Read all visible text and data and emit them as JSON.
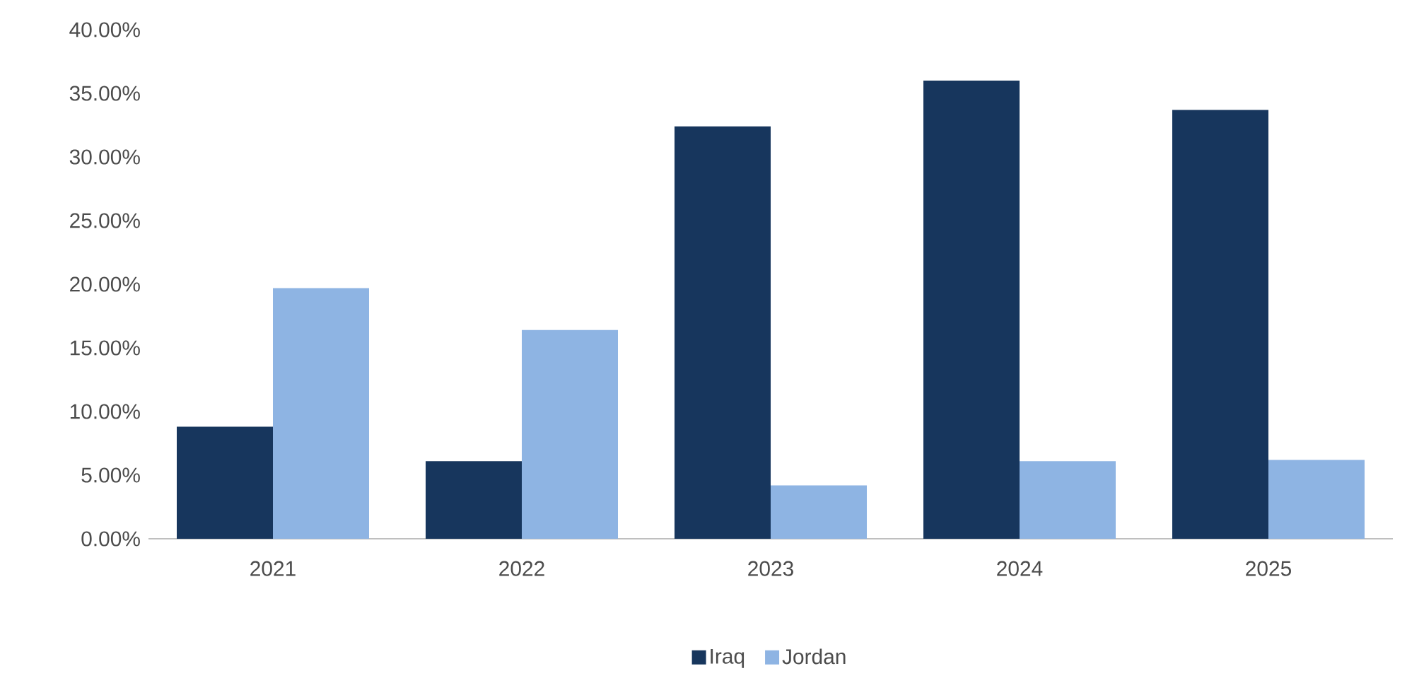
{
  "chart_data": {
    "type": "bar",
    "categories": [
      "2021",
      "2022",
      "2023",
      "2024",
      "2025"
    ],
    "series": [
      {
        "name": "Iraq",
        "color": "#17365d",
        "values": [
          8.8,
          6.1,
          32.4,
          36.0,
          33.7
        ]
      },
      {
        "name": "Jordan",
        "color": "#8eb4e3",
        "values": [
          19.7,
          16.4,
          4.2,
          6.1,
          6.2
        ]
      }
    ],
    "ylim": [
      0,
      40
    ],
    "yticks": [
      {
        "value": 0,
        "label": "0.00%"
      },
      {
        "value": 5,
        "label": "5.00%"
      },
      {
        "value": 10,
        "label": "10.00%"
      },
      {
        "value": 15,
        "label": "15.00%"
      },
      {
        "value": 20,
        "label": "20.00%"
      },
      {
        "value": 25,
        "label": "25.00%"
      },
      {
        "value": 30,
        "label": "30.00%"
      },
      {
        "value": 35,
        "label": "35.00%"
      },
      {
        "value": 40,
        "label": "40.00%"
      }
    ],
    "grid": false,
    "legend": "bottom"
  }
}
